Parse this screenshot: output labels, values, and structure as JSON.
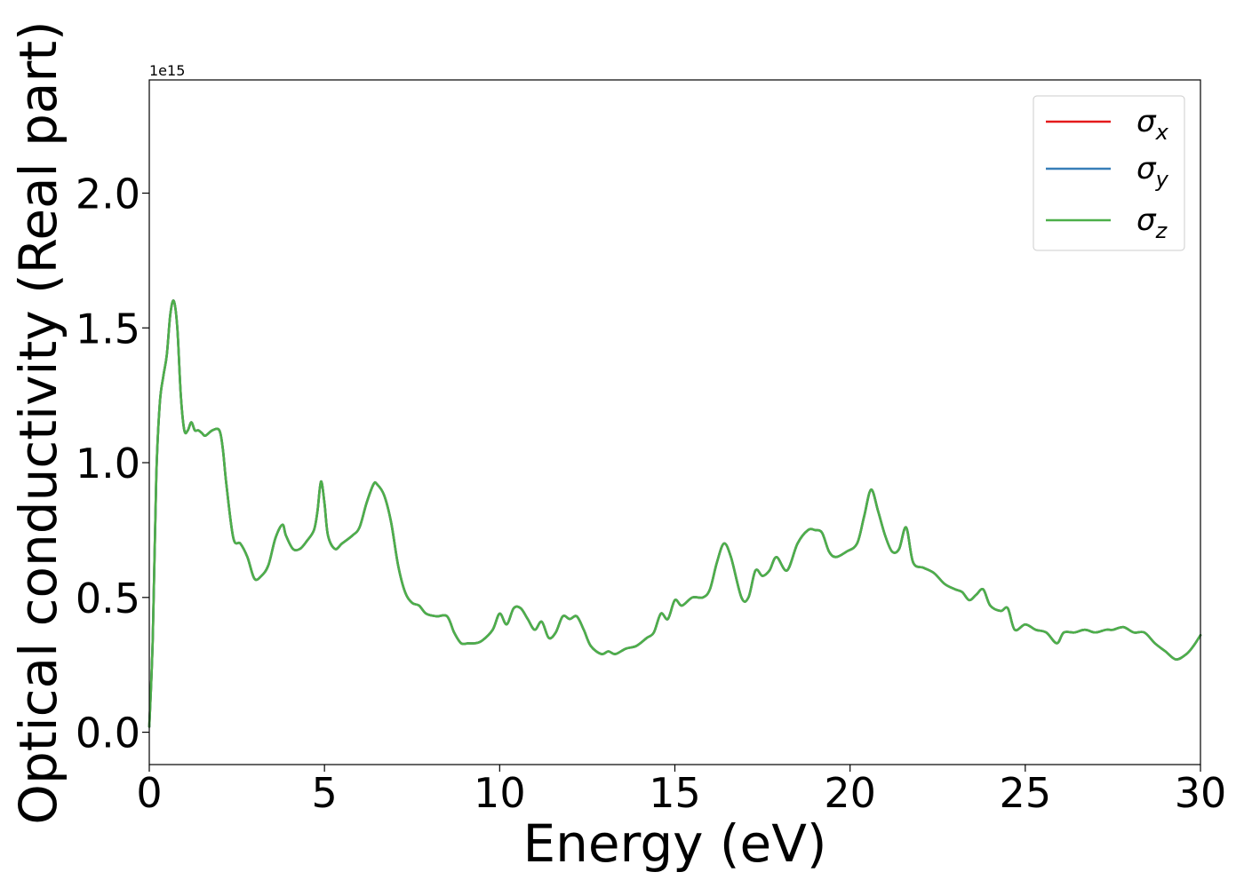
{
  "chart_data": {
    "type": "line",
    "title": "",
    "xlabel": "Energy (eV)",
    "ylabel": "Optical conductivity (Real part)",
    "y_offset_label": "1e15",
    "xlim": [
      0,
      30
    ],
    "ylim": [
      -0.12,
      2.42
    ],
    "x_ticks": [
      0,
      5,
      10,
      15,
      20,
      25,
      30
    ],
    "x_tick_labels": [
      "0",
      "5",
      "10",
      "15",
      "20",
      "25",
      "30"
    ],
    "y_ticks": [
      0.0,
      0.5,
      1.0,
      1.5,
      2.0
    ],
    "y_tick_labels": [
      "0.0",
      "0.5",
      "1.0",
      "1.5",
      "2.0"
    ],
    "grid": false,
    "legend_position": "top-right",
    "x": [
      0,
      0.1,
      0.2,
      0.3,
      0.4,
      0.5,
      0.6,
      0.7,
      0.8,
      0.9,
      1.0,
      1.1,
      1.2,
      1.3,
      1.4,
      1.5,
      1.6,
      1.8,
      2.0,
      2.1,
      2.2,
      2.4,
      2.6,
      2.8,
      3.0,
      3.2,
      3.4,
      3.6,
      3.8,
      3.9,
      4.1,
      4.3,
      4.5,
      4.7,
      4.8,
      4.9,
      5.0,
      5.1,
      5.3,
      5.5,
      5.8,
      6.0,
      6.2,
      6.4,
      6.5,
      6.7,
      6.9,
      7.1,
      7.3,
      7.5,
      7.7,
      7.9,
      8.2,
      8.5,
      8.7,
      8.9,
      9.1,
      9.3,
      9.5,
      9.8,
      10.0,
      10.2,
      10.4,
      10.6,
      10.8,
      11.0,
      11.2,
      11.4,
      11.6,
      11.8,
      12.0,
      12.2,
      12.4,
      12.6,
      12.9,
      13.1,
      13.3,
      13.6,
      13.9,
      14.2,
      14.4,
      14.6,
      14.8,
      15.0,
      15.2,
      15.5,
      15.8,
      16.0,
      16.2,
      16.4,
      16.6,
      16.9,
      17.1,
      17.3,
      17.5,
      17.7,
      17.9,
      18.2,
      18.5,
      18.8,
      19.0,
      19.2,
      19.4,
      19.6,
      19.9,
      20.2,
      20.4,
      20.6,
      20.8,
      21.0,
      21.2,
      21.4,
      21.6,
      21.8,
      22.1,
      22.4,
      22.7,
      23.0,
      23.2,
      23.4,
      23.6,
      23.8,
      24.0,
      24.3,
      24.5,
      24.7,
      25.0,
      25.3,
      25.6,
      25.9,
      26.1,
      26.4,
      26.7,
      27.0,
      27.3,
      27.5,
      27.8,
      28.1,
      28.4,
      28.7,
      29.0,
      29.3,
      29.6,
      29.8,
      30.0
    ],
    "series": [
      {
        "name": "σx",
        "color": "#e41a1c",
        "values": [
          0.02,
          0.35,
          0.95,
          1.22,
          1.32,
          1.4,
          1.55,
          1.6,
          1.5,
          1.25,
          1.12,
          1.12,
          1.15,
          1.12,
          1.12,
          1.11,
          1.1,
          1.12,
          1.12,
          1.05,
          0.92,
          0.72,
          0.7,
          0.65,
          0.57,
          0.58,
          0.62,
          0.72,
          0.77,
          0.73,
          0.68,
          0.68,
          0.71,
          0.75,
          0.82,
          0.93,
          0.85,
          0.73,
          0.68,
          0.7,
          0.73,
          0.76,
          0.85,
          0.92,
          0.92,
          0.88,
          0.78,
          0.62,
          0.52,
          0.48,
          0.47,
          0.44,
          0.43,
          0.43,
          0.37,
          0.33,
          0.33,
          0.33,
          0.34,
          0.38,
          0.44,
          0.4,
          0.46,
          0.46,
          0.42,
          0.38,
          0.41,
          0.35,
          0.37,
          0.43,
          0.42,
          0.43,
          0.38,
          0.32,
          0.29,
          0.3,
          0.29,
          0.31,
          0.32,
          0.35,
          0.37,
          0.44,
          0.42,
          0.49,
          0.47,
          0.5,
          0.5,
          0.53,
          0.63,
          0.7,
          0.65,
          0.5,
          0.5,
          0.6,
          0.58,
          0.6,
          0.65,
          0.6,
          0.7,
          0.75,
          0.75,
          0.74,
          0.67,
          0.65,
          0.67,
          0.7,
          0.8,
          0.9,
          0.82,
          0.73,
          0.67,
          0.68,
          0.76,
          0.63,
          0.61,
          0.59,
          0.55,
          0.53,
          0.52,
          0.49,
          0.51,
          0.53,
          0.47,
          0.45,
          0.46,
          0.38,
          0.4,
          0.38,
          0.37,
          0.33,
          0.37,
          0.37,
          0.38,
          0.37,
          0.38,
          0.38,
          0.39,
          0.37,
          0.37,
          0.33,
          0.3,
          0.27,
          0.29,
          0.32,
          0.36
        ]
      },
      {
        "name": "σy",
        "color": "#377eb8",
        "values": [
          0.02,
          0.35,
          0.95,
          1.22,
          1.32,
          1.4,
          1.55,
          1.6,
          1.5,
          1.25,
          1.12,
          1.12,
          1.15,
          1.12,
          1.12,
          1.11,
          1.1,
          1.12,
          1.12,
          1.05,
          0.92,
          0.72,
          0.7,
          0.65,
          0.57,
          0.58,
          0.62,
          0.72,
          0.77,
          0.73,
          0.68,
          0.68,
          0.71,
          0.75,
          0.82,
          0.93,
          0.85,
          0.73,
          0.68,
          0.7,
          0.73,
          0.76,
          0.85,
          0.92,
          0.92,
          0.88,
          0.78,
          0.62,
          0.52,
          0.48,
          0.47,
          0.44,
          0.43,
          0.43,
          0.37,
          0.33,
          0.33,
          0.33,
          0.34,
          0.38,
          0.44,
          0.4,
          0.46,
          0.46,
          0.42,
          0.38,
          0.41,
          0.35,
          0.37,
          0.43,
          0.42,
          0.43,
          0.38,
          0.32,
          0.29,
          0.3,
          0.29,
          0.31,
          0.32,
          0.35,
          0.37,
          0.44,
          0.42,
          0.49,
          0.47,
          0.5,
          0.5,
          0.53,
          0.63,
          0.7,
          0.65,
          0.5,
          0.5,
          0.6,
          0.58,
          0.6,
          0.65,
          0.6,
          0.7,
          0.75,
          0.75,
          0.74,
          0.67,
          0.65,
          0.67,
          0.7,
          0.8,
          0.9,
          0.82,
          0.73,
          0.67,
          0.68,
          0.76,
          0.63,
          0.61,
          0.59,
          0.55,
          0.53,
          0.52,
          0.49,
          0.51,
          0.53,
          0.47,
          0.45,
          0.46,
          0.38,
          0.4,
          0.38,
          0.37,
          0.33,
          0.37,
          0.37,
          0.38,
          0.37,
          0.38,
          0.38,
          0.39,
          0.37,
          0.37,
          0.33,
          0.3,
          0.27,
          0.29,
          0.32,
          0.36
        ]
      },
      {
        "name": "σz",
        "color": "#4daf4a",
        "values": [
          0.02,
          0.35,
          0.95,
          1.22,
          1.32,
          1.4,
          1.55,
          1.6,
          1.5,
          1.25,
          1.12,
          1.12,
          1.15,
          1.12,
          1.12,
          1.11,
          1.1,
          1.12,
          1.12,
          1.05,
          0.92,
          0.72,
          0.7,
          0.65,
          0.57,
          0.58,
          0.62,
          0.72,
          0.77,
          0.73,
          0.68,
          0.68,
          0.71,
          0.75,
          0.82,
          0.93,
          0.85,
          0.73,
          0.68,
          0.7,
          0.73,
          0.76,
          0.85,
          0.92,
          0.92,
          0.88,
          0.78,
          0.62,
          0.52,
          0.48,
          0.47,
          0.44,
          0.43,
          0.43,
          0.37,
          0.33,
          0.33,
          0.33,
          0.34,
          0.38,
          0.44,
          0.4,
          0.46,
          0.46,
          0.42,
          0.38,
          0.41,
          0.35,
          0.37,
          0.43,
          0.42,
          0.43,
          0.38,
          0.32,
          0.29,
          0.3,
          0.29,
          0.31,
          0.32,
          0.35,
          0.37,
          0.44,
          0.42,
          0.49,
          0.47,
          0.5,
          0.5,
          0.53,
          0.63,
          0.7,
          0.65,
          0.5,
          0.5,
          0.6,
          0.58,
          0.6,
          0.65,
          0.6,
          0.7,
          0.75,
          0.75,
          0.74,
          0.67,
          0.65,
          0.67,
          0.7,
          0.8,
          0.9,
          0.82,
          0.73,
          0.67,
          0.68,
          0.76,
          0.63,
          0.61,
          0.59,
          0.55,
          0.53,
          0.52,
          0.49,
          0.51,
          0.53,
          0.47,
          0.45,
          0.46,
          0.38,
          0.4,
          0.38,
          0.37,
          0.33,
          0.37,
          0.37,
          0.38,
          0.37,
          0.38,
          0.38,
          0.39,
          0.37,
          0.37,
          0.33,
          0.3,
          0.27,
          0.29,
          0.32,
          0.36
        ]
      }
    ],
    "legend": [
      {
        "base": "σ",
        "sub": "x",
        "color": "#e41a1c"
      },
      {
        "base": "σ",
        "sub": "y",
        "color": "#377eb8"
      },
      {
        "base": "σ",
        "sub": "z",
        "color": "#4daf4a"
      }
    ]
  }
}
